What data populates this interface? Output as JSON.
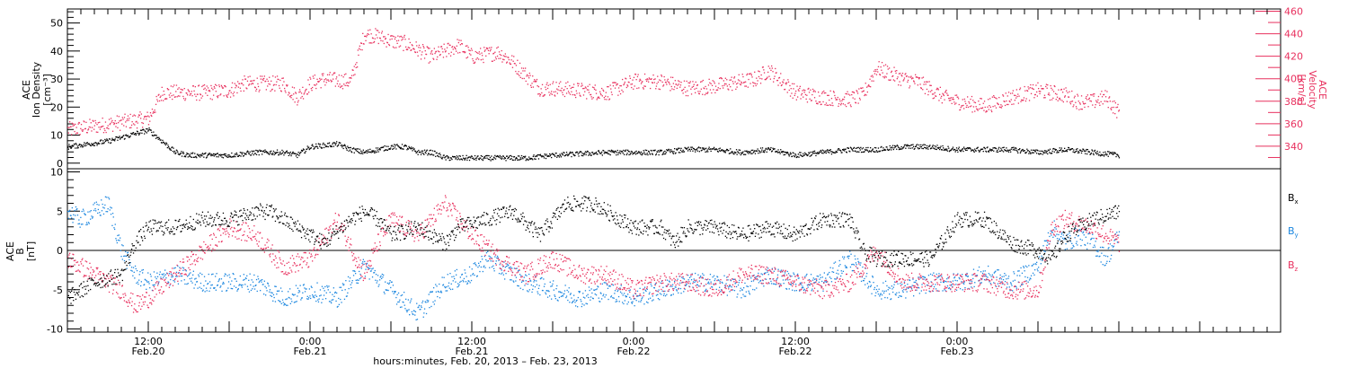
{
  "colors": {
    "black": "#000000",
    "pink": "#e8305e",
    "blue": "#1a86df"
  },
  "chart_data": [
    {
      "type": "scatter",
      "panel": "top",
      "ylabel_left": [
        "ACE",
        "Ion Density",
        "[cm⁻³]"
      ],
      "ylabel_right": [
        "ACE",
        "Velocity",
        "[km/s]"
      ],
      "ylim_left": [
        -2,
        55
      ],
      "ylim_right": [
        320,
        462
      ],
      "left_ticks": [
        "0",
        "10",
        "20",
        "30",
        "40",
        "50"
      ],
      "right_ticks": [
        "340",
        "360",
        "380",
        "400",
        "420",
        "440",
        "460"
      ],
      "series": [
        {
          "name": "Ion Density",
          "axis": "left",
          "color": "#000000",
          "x_hours": [
            0,
            3,
            6,
            8,
            9,
            10,
            12,
            14,
            16,
            17,
            18,
            20,
            21,
            22,
            23,
            24,
            25,
            26,
            27,
            28,
            30,
            32,
            34,
            36,
            40,
            42,
            44,
            46,
            48,
            50,
            52,
            54,
            56,
            58,
            60,
            62,
            64,
            66,
            68,
            70,
            72,
            74,
            76,
            78
          ],
          "y": [
            6,
            8,
            12,
            4,
            3,
            3,
            3,
            4,
            4,
            3,
            6,
            7,
            5,
            4,
            5,
            6,
            6,
            4,
            4,
            2,
            2,
            2,
            2,
            3,
            4,
            4,
            4,
            5,
            5,
            4,
            5,
            3,
            4,
            5,
            5,
            6,
            6,
            5,
            5,
            5,
            4,
            5,
            4,
            3
          ]
        },
        {
          "name": "Velocity",
          "axis": "right",
          "color": "#e8305e",
          "x_hours": [
            0,
            3,
            6,
            7,
            10,
            12,
            13,
            16,
            17,
            18,
            19,
            21,
            22,
            23,
            24,
            25,
            27,
            29,
            30,
            32,
            33,
            35,
            36,
            38,
            40,
            42,
            44,
            46,
            48,
            49,
            51,
            52,
            54,
            56,
            58,
            59,
            60,
            62,
            63,
            65,
            66,
            68,
            70,
            72,
            74,
            75,
            76,
            77,
            78
          ],
          "y": [
            355,
            360,
            365,
            388,
            388,
            390,
            396,
            396,
            384,
            396,
            400,
            398,
            440,
            438,
            434,
            432,
            420,
            430,
            420,
            424,
            415,
            392,
            392,
            390,
            388,
            398,
            398,
            392,
            394,
            396,
            400,
            408,
            388,
            384,
            382,
            386,
            410,
            400,
            398,
            384,
            380,
            376,
            384,
            390,
            386,
            380,
            380,
            384,
            370
          ]
        }
      ]
    },
    {
      "type": "scatter",
      "panel": "bottom",
      "ylabel_left": [
        "ACE",
        "B",
        "[nT]"
      ],
      "ylim": [
        -10.4,
        10.4
      ],
      "left_ticks": [
        "10",
        "5",
        "0",
        "-5",
        "-10"
      ],
      "legend_placement": "right",
      "series": [
        {
          "name": "Bx",
          "color": "#000000",
          "x_hours": [
            0,
            2,
            4,
            5,
            6,
            8,
            10,
            12,
            14,
            15,
            17,
            19,
            21,
            22,
            23,
            24,
            26,
            28,
            29,
            31,
            33,
            35,
            37,
            39,
            40,
            42,
            44,
            45,
            46,
            48,
            50,
            52,
            54,
            56,
            58,
            59,
            60,
            62,
            64,
            66,
            68,
            70,
            72,
            73,
            74,
            76,
            78
          ],
          "y": [
            -6,
            -4,
            -3,
            1,
            3,
            3,
            4,
            4,
            5,
            5,
            3,
            1,
            4,
            5,
            4,
            2,
            3,
            1,
            3,
            4,
            5,
            2,
            6,
            6,
            5,
            3,
            3,
            1,
            3,
            3,
            2,
            3,
            2,
            4,
            4,
            0,
            -1,
            -1,
            -1,
            4,
            4,
            1,
            0,
            -1,
            2,
            4,
            5
          ]
        },
        {
          "name": "By",
          "color": "#1a86df",
          "x_hours": [
            0,
            1,
            2,
            3,
            4,
            5,
            6,
            8,
            10,
            12,
            14,
            16,
            18,
            20,
            21,
            22,
            24,
            26,
            28,
            30,
            31,
            32,
            34,
            36,
            38,
            40,
            42,
            44,
            46,
            48,
            50,
            52,
            54,
            56,
            58,
            60,
            62,
            64,
            66,
            68,
            70,
            72,
            73,
            74,
            75,
            76,
            77,
            78
          ],
          "y": [
            5,
            4,
            5,
            6,
            0,
            -3,
            -4,
            -3,
            -4,
            -4,
            -4,
            -6,
            -5,
            -6,
            -4,
            -2,
            -5,
            -8,
            -4,
            -3,
            -1,
            -2,
            -4,
            -5,
            -6,
            -5,
            -6,
            -5,
            -4,
            -4,
            -5,
            -3,
            -4,
            -4,
            -1,
            -5,
            -5,
            -4,
            -4,
            -3,
            -4,
            -2,
            3,
            1,
            2,
            1,
            -1,
            2
          ]
        },
        {
          "name": "Bz",
          "color": "#e8305e",
          "x_hours": [
            0,
            1,
            2,
            4,
            5,
            6,
            8,
            10,
            12,
            14,
            16,
            18,
            20,
            22,
            23,
            24,
            26,
            28,
            30,
            32,
            34,
            36,
            38,
            40,
            42,
            44,
            46,
            48,
            50,
            52,
            54,
            56,
            58,
            60,
            62,
            64,
            66,
            68,
            70,
            72,
            73,
            74,
            76,
            78
          ],
          "y": [
            -1,
            -2,
            -3,
            -5,
            -7,
            -6,
            -3,
            0,
            3,
            2,
            -2,
            -1,
            4,
            -3,
            1,
            4,
            2,
            6,
            2,
            -1,
            -3,
            -1,
            -3,
            -3,
            -5,
            -4,
            -4,
            -5,
            -3,
            -3,
            -4,
            -5,
            -4,
            0,
            -4,
            -4,
            -4,
            -4,
            -5,
            -5,
            3,
            4,
            3,
            1
          ]
        }
      ]
    }
  ],
  "legend": {
    "bx": "B",
    "bx_sub": "x",
    "by": "B",
    "by_sub": "y",
    "bz": "B",
    "bz_sub": "z"
  },
  "x_axis": {
    "range_hours": [
      0,
      90.0
    ],
    "tick_labels": [
      {
        "hour": 6,
        "time": "12:00",
        "date": "Feb.20"
      },
      {
        "hour": 18,
        "time": "0:00",
        "date": "Feb.21"
      },
      {
        "hour": 30,
        "time": "12:00",
        "date": "Feb.21"
      },
      {
        "hour": 42,
        "time": "0:00",
        "date": "Feb.22"
      },
      {
        "hour": 54,
        "time": "12:00",
        "date": "Feb.22"
      },
      {
        "hour": 66,
        "time": "0:00",
        "date": "Feb.23"
      }
    ],
    "title": "hours:minutes, Feb. 20, 2013 – Feb. 23, 2013"
  }
}
